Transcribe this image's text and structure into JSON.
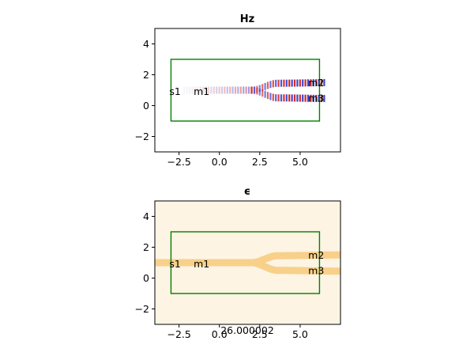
{
  "chart_data": [
    {
      "type": "heatmap",
      "title": "Hz",
      "xlabel": "",
      "ylabel": "",
      "xlim": [
        -4.0,
        7.5
      ],
      "ylim": [
        -3.0,
        5.0
      ],
      "x_ticks": [
        -2.5,
        0.0,
        2.5,
        5.0
      ],
      "x_tick_labels": [
        "−2.5",
        "0.0",
        "2.5",
        "5.0"
      ],
      "y_ticks": [
        -2,
        0,
        2,
        4
      ],
      "y_tick_labels": [
        "−2",
        "0",
        "2",
        "4"
      ],
      "colormap": "seismic (blue–white–red)",
      "box": {
        "x0": -3.0,
        "x1": 6.2,
        "y0": -1.0,
        "y1": 3.0,
        "color": "#008000"
      },
      "labels": [
        {
          "text": "s1",
          "x": -3.0,
          "y": 0.9
        },
        {
          "text": "m1",
          "x": -1.5,
          "y": 0.9
        },
        {
          "text": "m2",
          "x": 5.6,
          "y": 1.45
        },
        {
          "text": "m3",
          "x": 5.6,
          "y": 0.45
        }
      ],
      "waveguides": [
        {
          "name": "input",
          "x": [
            -4.0,
            2.0
          ],
          "y": [
            1.0,
            1.0
          ]
        },
        {
          "name": "upper branch",
          "x": [
            2.0,
            3.6,
            7.5
          ],
          "y": [
            1.0,
            1.45,
            1.5
          ]
        },
        {
          "name": "lower branch",
          "x": [
            2.0,
            3.6,
            7.5
          ],
          "y": [
            1.0,
            0.5,
            0.45
          ]
        }
      ],
      "field_onset_x": 0.5
    },
    {
      "type": "heatmap",
      "title": "ϵ",
      "xlabel": "",
      "ylabel": "",
      "xlim": [
        -4.0,
        7.5
      ],
      "ylim": [
        -3.0,
        5.0
      ],
      "x_ticks": [
        -2.5,
        0.0,
        2.5,
        5.0
      ],
      "x_tick_labels": [
        "−2.5",
        "0.0",
        "2.5",
        "5.0"
      ],
      "y_ticks": [
        -2,
        0,
        2,
        4
      ],
      "y_tick_labels": [
        "−2",
        "0",
        "2",
        "4"
      ],
      "colormap": "sunset (cream–orange)",
      "background_color": "#fdf4e4",
      "core_color": "#f8d08a",
      "box": {
        "x0": -3.0,
        "x1": 6.2,
        "y0": -1.0,
        "y1": 3.0,
        "color": "#008000"
      },
      "labels": [
        {
          "text": "s1",
          "x": -3.0,
          "y": 0.9
        },
        {
          "text": "m1",
          "x": -1.5,
          "y": 0.9
        },
        {
          "text": "m2",
          "x": 5.6,
          "y": 1.45
        },
        {
          "text": "m3",
          "x": 5.6,
          "y": 0.45
        }
      ],
      "waveguides": [
        {
          "name": "input",
          "x": [
            -4.0,
            2.0
          ],
          "y": [
            1.0,
            1.0
          ]
        },
        {
          "name": "upper branch",
          "x": [
            2.0,
            3.6,
            7.5
          ],
          "y": [
            1.0,
            1.45,
            1.5
          ]
        },
        {
          "name": "lower branch",
          "x": [
            2.0,
            3.6,
            7.5
          ],
          "y": [
            1.0,
            0.5,
            0.45
          ]
        }
      ],
      "annotation": "26.000002"
    }
  ]
}
